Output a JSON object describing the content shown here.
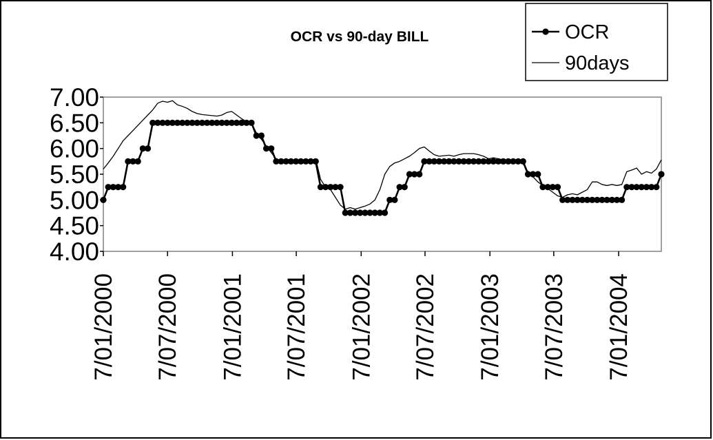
{
  "chart_data": {
    "type": "line",
    "title": "OCR vs 90-day BILL",
    "legend": "upper right",
    "grid": false,
    "x": [
      "2000-01-07",
      "2000-01-21",
      "2000-02-04",
      "2000-02-18",
      "2000-03-03",
      "2000-03-17",
      "2000-03-31",
      "2000-04-14",
      "2000-04-28",
      "2000-05-12",
      "2000-05-26",
      "2000-06-09",
      "2000-06-23",
      "2000-07-07",
      "2000-07-21",
      "2000-08-04",
      "2000-08-18",
      "2000-09-01",
      "2000-09-15",
      "2000-09-29",
      "2000-10-13",
      "2000-10-27",
      "2000-11-10",
      "2000-11-24",
      "2000-12-08",
      "2000-12-22",
      "2001-01-05",
      "2001-01-19",
      "2001-02-02",
      "2001-02-16",
      "2001-03-02",
      "2001-03-16",
      "2001-03-30",
      "2001-04-13",
      "2001-04-27",
      "2001-05-11",
      "2001-05-25",
      "2001-06-08",
      "2001-06-22",
      "2001-07-06",
      "2001-07-20",
      "2001-08-03",
      "2001-08-17",
      "2001-08-31",
      "2001-09-14",
      "2001-09-28",
      "2001-10-12",
      "2001-10-26",
      "2001-11-09",
      "2001-11-23",
      "2001-12-07",
      "2001-12-21",
      "2002-01-04",
      "2002-01-18",
      "2002-02-01",
      "2002-02-15",
      "2002-03-01",
      "2002-03-15",
      "2002-03-29",
      "2002-04-12",
      "2002-04-26",
      "2002-05-10",
      "2002-05-24",
      "2002-06-07",
      "2002-06-21",
      "2002-07-05",
      "2002-07-19",
      "2002-08-02",
      "2002-08-16",
      "2002-08-30",
      "2002-09-13",
      "2002-09-27",
      "2002-10-11",
      "2002-10-25",
      "2002-11-08",
      "2002-11-22",
      "2002-12-06",
      "2002-12-20",
      "2003-01-03",
      "2003-01-17",
      "2003-01-31",
      "2003-02-14",
      "2003-02-28",
      "2003-03-14",
      "2003-03-28",
      "2003-04-11",
      "2003-04-25",
      "2003-05-09",
      "2003-05-23",
      "2003-06-06",
      "2003-06-20",
      "2003-07-04",
      "2003-07-18",
      "2003-08-01",
      "2003-08-15",
      "2003-08-29",
      "2003-09-12",
      "2003-09-26",
      "2003-10-10",
      "2003-10-24",
      "2003-11-07",
      "2003-11-21",
      "2003-12-05",
      "2003-12-19",
      "2004-01-02",
      "2004-01-16",
      "2004-01-30",
      "2004-02-13",
      "2004-02-27",
      "2004-03-12",
      "2004-03-26",
      "2004-04-09",
      "2004-04-23",
      "2004-05-07"
    ],
    "series": [
      {
        "name": "OCR",
        "color": "#000000",
        "marker": "circle",
        "values": [
          5.0,
          5.25,
          5.25,
          5.25,
          5.25,
          5.75,
          5.75,
          5.75,
          6.0,
          6.0,
          6.5,
          6.5,
          6.5,
          6.5,
          6.5,
          6.5,
          6.5,
          6.5,
          6.5,
          6.5,
          6.5,
          6.5,
          6.5,
          6.5,
          6.5,
          6.5,
          6.5,
          6.5,
          6.5,
          6.5,
          6.5,
          6.25,
          6.25,
          6.0,
          6.0,
          5.75,
          5.75,
          5.75,
          5.75,
          5.75,
          5.75,
          5.75,
          5.75,
          5.75,
          5.25,
          5.25,
          5.25,
          5.25,
          5.25,
          4.75,
          4.75,
          4.75,
          4.75,
          4.75,
          4.75,
          4.75,
          4.75,
          4.75,
          5.0,
          5.0,
          5.25,
          5.25,
          5.5,
          5.5,
          5.5,
          5.75,
          5.75,
          5.75,
          5.75,
          5.75,
          5.75,
          5.75,
          5.75,
          5.75,
          5.75,
          5.75,
          5.75,
          5.75,
          5.75,
          5.75,
          5.75,
          5.75,
          5.75,
          5.75,
          5.75,
          5.75,
          5.5,
          5.5,
          5.5,
          5.25,
          5.25,
          5.25,
          5.25,
          5.0,
          5.0,
          5.0,
          5.0,
          5.0,
          5.0,
          5.0,
          5.0,
          5.0,
          5.0,
          5.0,
          5.0,
          5.0,
          5.25,
          5.25,
          5.25,
          5.25,
          5.25,
          5.25,
          5.25,
          5.5
        ]
      },
      {
        "name": "90days",
        "color": "#000000",
        "values": [
          5.6,
          5.72,
          5.85,
          6.0,
          6.15,
          6.25,
          6.35,
          6.45,
          6.55,
          6.65,
          6.75,
          6.88,
          6.92,
          6.9,
          6.93,
          6.85,
          6.82,
          6.78,
          6.72,
          6.68,
          6.66,
          6.65,
          6.64,
          6.63,
          6.65,
          6.7,
          6.72,
          6.65,
          6.58,
          6.52,
          6.5,
          6.3,
          6.18,
          6.05,
          5.92,
          5.8,
          5.75,
          5.75,
          5.76,
          5.78,
          5.76,
          5.74,
          5.77,
          5.8,
          5.4,
          5.25,
          5.2,
          5.05,
          4.9,
          4.82,
          4.85,
          4.82,
          4.85,
          4.88,
          4.92,
          5.0,
          5.2,
          5.5,
          5.65,
          5.72,
          5.75,
          5.8,
          5.85,
          5.92,
          6.0,
          6.03,
          5.95,
          5.88,
          5.85,
          5.86,
          5.87,
          5.85,
          5.88,
          5.9,
          5.9,
          5.9,
          5.88,
          5.85,
          5.8,
          5.82,
          5.8,
          5.78,
          5.78,
          5.76,
          5.74,
          5.7,
          5.55,
          5.45,
          5.35,
          5.28,
          5.22,
          5.15,
          5.08,
          5.05,
          5.1,
          5.12,
          5.1,
          5.15,
          5.2,
          5.35,
          5.35,
          5.3,
          5.28,
          5.3,
          5.28,
          5.3,
          5.55,
          5.58,
          5.62,
          5.5,
          5.55,
          5.52,
          5.6,
          5.78
        ]
      }
    ],
    "xlim": [
      "2000-01-07",
      "2004-05-07"
    ],
    "xticks": [
      {
        "value": "2000-01-07",
        "label": "7/01/2000"
      },
      {
        "value": "2000-07-07",
        "label": "7/07/2000"
      },
      {
        "value": "2001-01-07",
        "label": "7/01/2001"
      },
      {
        "value": "2001-07-07",
        "label": "7/07/2001"
      },
      {
        "value": "2002-01-07",
        "label": "7/01/2002"
      },
      {
        "value": "2002-07-07",
        "label": "7/07/2002"
      },
      {
        "value": "2003-01-07",
        "label": "7/01/2003"
      },
      {
        "value": "2003-07-07",
        "label": "7/07/2003"
      },
      {
        "value": "2004-01-07",
        "label": "7/01/2004"
      }
    ],
    "ylim": [
      4,
      7
    ],
    "yticks": [
      {
        "value": 4,
        "label": "4.00"
      },
      {
        "value": 4.5,
        "label": "4.50"
      },
      {
        "value": 5,
        "label": "5.00"
      },
      {
        "value": 5.5,
        "label": "5.50"
      },
      {
        "value": 6,
        "label": "6.00"
      },
      {
        "value": 6.5,
        "label": "6.50"
      },
      {
        "value": 7,
        "label": "7.00"
      }
    ]
  }
}
